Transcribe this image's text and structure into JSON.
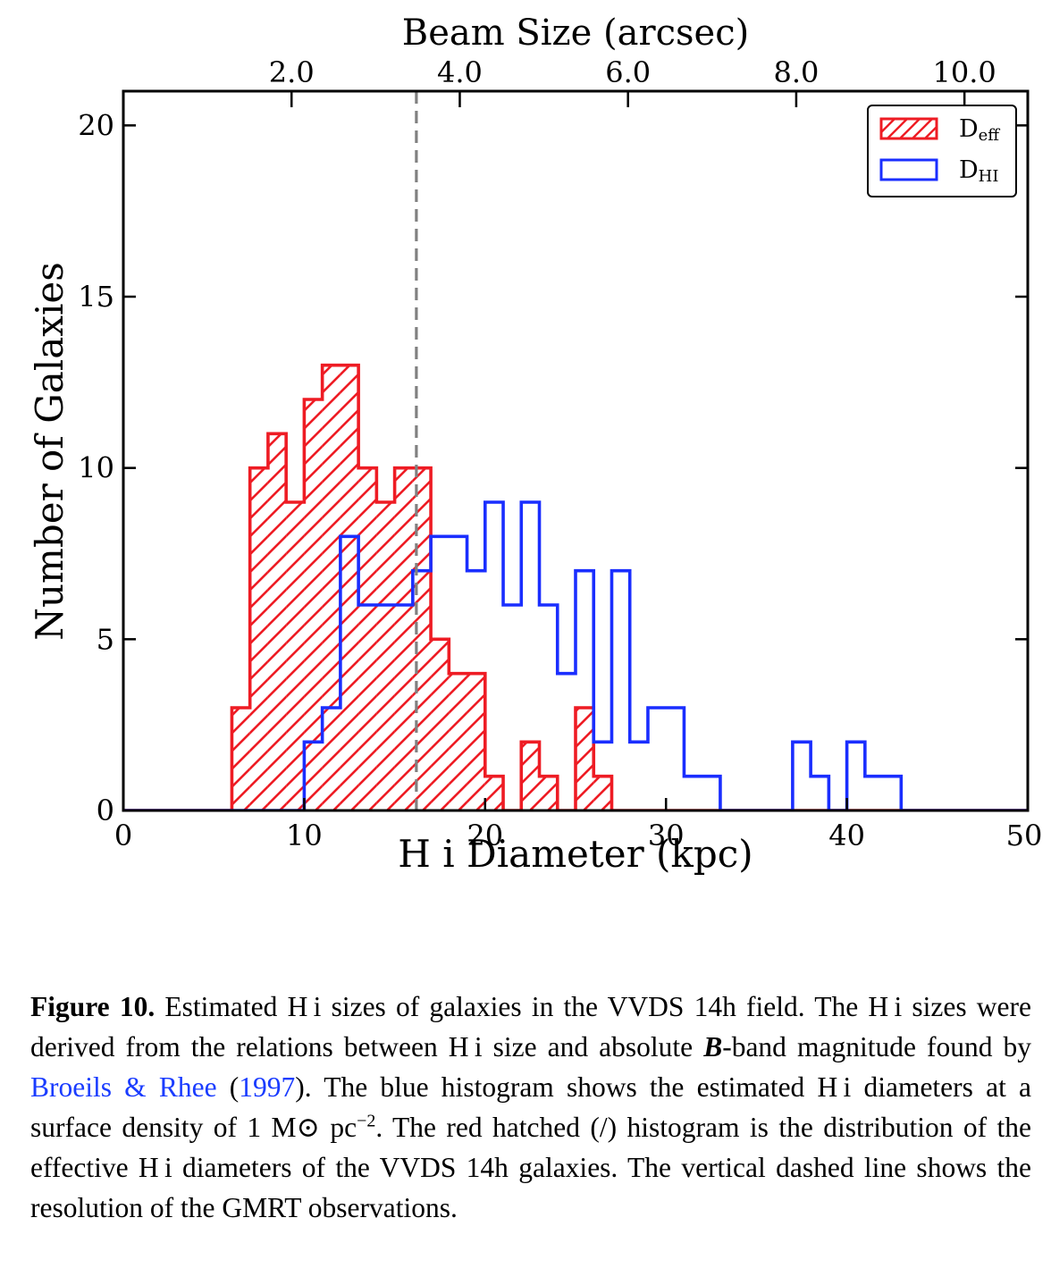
{
  "chart_data": {
    "type": "histogram",
    "xlabel": "H i Diameter (kpc)",
    "ylabel": "Number of Galaxies",
    "top_xlabel": "Beam Size (arcsec)",
    "xlim": [
      0,
      50
    ],
    "ylim": [
      0,
      21
    ],
    "xticks": [
      "0",
      "10",
      "20",
      "30",
      "40",
      "50"
    ],
    "yticks": [
      "0",
      "5",
      "10",
      "15",
      "20"
    ],
    "top_xticks": [
      "2.0",
      "4.0",
      "6.0",
      "8.0",
      "10.0"
    ],
    "top_xtick_positions_kpc": [
      9.3,
      18.6,
      27.9,
      37.2,
      46.5
    ],
    "bin_edges": [
      0,
      1,
      2,
      3,
      4,
      5,
      6,
      7,
      8,
      9,
      10,
      11,
      12,
      13,
      14,
      15,
      16,
      17,
      18,
      19,
      20,
      21,
      22,
      23,
      24,
      25,
      26,
      27,
      28,
      29,
      30,
      31,
      32,
      33,
      34,
      35,
      36,
      37,
      38,
      39,
      40,
      41,
      42,
      43,
      44,
      45,
      46,
      47,
      48,
      49
    ],
    "series": [
      {
        "name": "D_eff",
        "style": "red hatched (/)",
        "color": "#ee1c24",
        "counts": [
          0,
          0,
          0,
          0,
          0,
          0,
          3,
          10,
          11,
          9,
          12,
          13,
          13,
          10,
          9,
          10,
          10,
          5,
          4,
          4,
          1,
          0,
          2,
          1,
          0,
          3,
          1,
          0,
          0,
          0,
          0,
          0,
          0,
          0,
          0,
          0,
          0,
          0,
          0,
          0,
          0,
          0,
          0,
          0,
          0,
          0,
          0,
          0,
          0
        ]
      },
      {
        "name": "D_HI",
        "style": "blue step",
        "color": "#1a2eff",
        "counts": [
          0,
          0,
          0,
          0,
          0,
          0,
          0,
          0,
          0,
          0,
          2,
          3,
          8,
          6,
          6,
          6,
          7,
          8,
          8,
          7,
          9,
          6,
          9,
          6,
          4,
          7,
          2,
          7,
          2,
          3,
          3,
          1,
          1,
          0,
          0,
          0,
          0,
          2,
          1,
          0,
          2,
          1,
          1,
          0,
          0,
          0,
          0,
          0,
          0
        ]
      }
    ],
    "reference_line": {
      "x": 16.2,
      "style": "dashed",
      "color": "#808080"
    },
    "legend": {
      "placement": "top-right",
      "entries": [
        {
          "main": "D",
          "sub": "eff",
          "color": "#ee1c24",
          "style": "hatched"
        },
        {
          "main": "D",
          "sub": "HI",
          "color": "#1a2eff",
          "style": "outline"
        }
      ]
    }
  },
  "caption": {
    "label": "Figure 10.",
    "p1": " Estimated H i sizes of galaxies in the VVDS 14h field. The H i sizes were derived from the relations between H i size and absolute ",
    "band": "B",
    "p2": "-band magnitude found by ",
    "cite_authors": "Broeils & Rhee",
    "open_paren": " (",
    "cite_year": "1997",
    "p3": "). The blue histogram shows the estimated H i diameters at a surface density of 1 M⊙ pc",
    "exp": "−2",
    "p4": ". The red hatched (/) histogram is the distribution of the effective H i diameters of the VVDS 14h galaxies. The vertical dashed line shows the resolution of the GMRT observations."
  }
}
